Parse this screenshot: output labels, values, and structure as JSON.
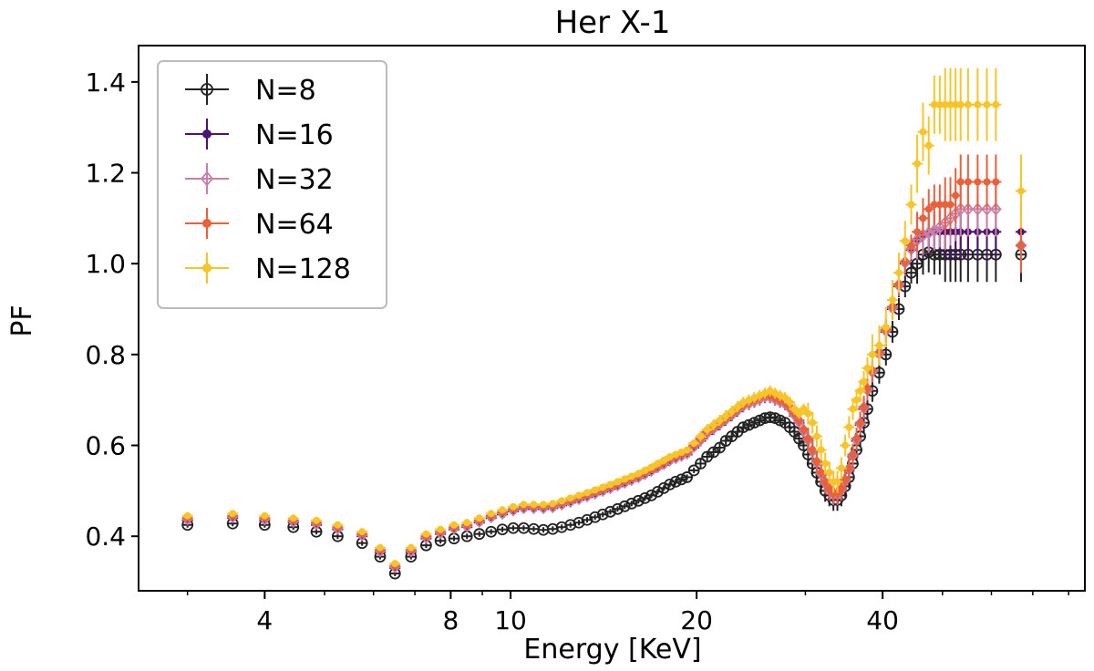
{
  "chart_data": {
    "type": "scatter",
    "title": "Her X-1",
    "xlabel": "Energy [KeV]",
    "ylabel": "PF",
    "x_scale": "log",
    "xlim": [
      2.5,
      85
    ],
    "ylim": [
      0.28,
      1.48
    ],
    "x_ticks": [
      4,
      8,
      10,
      20,
      40
    ],
    "y_ticks": [
      0.4,
      0.6,
      0.8,
      1.0,
      1.2,
      1.4
    ],
    "y_tick_labels": [
      "0.4",
      "0.6",
      "0.8",
      "1.0",
      "1.2",
      "1.4"
    ],
    "legend_position": "top-left",
    "x": [
      3.0,
      3.55,
      4.0,
      4.45,
      4.85,
      5.25,
      5.75,
      6.15,
      6.5,
      6.9,
      7.3,
      7.7,
      8.1,
      8.5,
      8.9,
      9.3,
      9.7,
      10.1,
      10.5,
      10.9,
      11.3,
      11.7,
      12.1,
      12.5,
      12.9,
      13.3,
      13.7,
      14.1,
      14.5,
      14.9,
      15.3,
      15.7,
      16.1,
      16.5,
      16.9,
      17.3,
      17.7,
      18.1,
      18.5,
      18.9,
      19.3,
      19.8,
      20.3,
      20.8,
      21.3,
      21.8,
      22.3,
      22.8,
      23.3,
      23.8,
      24.3,
      24.8,
      25.3,
      25.8,
      26.3,
      26.8,
      27.3,
      27.8,
      28.3,
      28.8,
      29.3,
      29.8,
      30.3,
      30.8,
      31.3,
      31.8,
      32.3,
      32.8,
      33.3,
      33.8,
      34.3,
      34.8,
      35.3,
      35.8,
      36.3,
      36.8,
      37.3,
      37.8,
      38.5,
      39.5,
      40.5,
      41.5,
      42.5,
      43.5,
      44.5,
      45.5,
      46.5,
      47.5,
      48.5,
      49.5,
      50.5,
      51.5,
      52.5,
      53.5,
      55.0,
      57.0,
      59.0,
      61.0,
      67.0
    ],
    "series": [
      {
        "name": "N=8",
        "color": "#222222",
        "marker": "open-circle",
        "values": [
          0.425,
          0.428,
          0.425,
          0.42,
          0.41,
          0.4,
          0.385,
          0.355,
          0.318,
          0.355,
          0.38,
          0.39,
          0.395,
          0.4,
          0.405,
          0.41,
          0.415,
          0.418,
          0.418,
          0.416,
          0.414,
          0.416,
          0.42,
          0.425,
          0.43,
          0.436,
          0.442,
          0.448,
          0.454,
          0.46,
          0.466,
          0.472,
          0.478,
          0.484,
          0.49,
          0.498,
          0.506,
          0.514,
          0.52,
          0.525,
          0.53,
          0.545,
          0.56,
          0.575,
          0.585,
          0.595,
          0.61,
          0.62,
          0.63,
          0.64,
          0.645,
          0.65,
          0.655,
          0.66,
          0.662,
          0.66,
          0.655,
          0.65,
          0.64,
          0.63,
          0.615,
          0.6,
          0.58,
          0.56,
          0.54,
          0.52,
          0.5,
          0.49,
          0.48,
          0.48,
          0.49,
          0.51,
          0.53,
          0.56,
          0.59,
          0.62,
          0.65,
          0.68,
          0.72,
          0.76,
          0.8,
          0.85,
          0.9,
          0.95,
          0.98,
          1.0,
          1.02,
          1.025,
          1.02,
          1.02,
          1.02,
          1.02,
          1.02,
          1.02,
          1.02,
          1.02,
          1.02,
          1.02,
          1.02
        ]
      },
      {
        "name": "N=16",
        "color": "#4b1470",
        "marker": "filled-dot",
        "values": [
          0.435,
          0.44,
          0.435,
          0.43,
          0.425,
          0.415,
          0.4,
          0.365,
          0.33,
          0.365,
          0.395,
          0.405,
          0.415,
          0.42,
          0.43,
          0.44,
          0.448,
          0.455,
          0.46,
          0.46,
          0.46,
          0.462,
          0.468,
          0.474,
          0.48,
          0.486,
          0.492,
          0.498,
          0.504,
          0.51,
          0.516,
          0.522,
          0.528,
          0.535,
          0.542,
          0.55,
          0.557,
          0.565,
          0.57,
          0.575,
          0.58,
          0.595,
          0.61,
          0.625,
          0.635,
          0.645,
          0.655,
          0.665,
          0.675,
          0.685,
          0.69,
          0.695,
          0.7,
          0.705,
          0.705,
          0.7,
          0.695,
          0.69,
          0.68,
          0.665,
          0.65,
          0.63,
          0.61,
          0.585,
          0.56,
          0.535,
          0.515,
          0.5,
          0.49,
          0.49,
          0.5,
          0.52,
          0.545,
          0.575,
          0.61,
          0.645,
          0.68,
          0.72,
          0.76,
          0.8,
          0.85,
          0.9,
          0.95,
          1.0,
          1.03,
          1.05,
          1.06,
          1.065,
          1.07,
          1.07,
          1.07,
          1.07,
          1.07,
          1.07,
          1.07,
          1.07,
          1.07,
          1.07,
          1.07
        ]
      },
      {
        "name": "N=32",
        "color": "#c97fa8",
        "marker": "open-diamond",
        "values": [
          0.438,
          0.443,
          0.438,
          0.433,
          0.428,
          0.418,
          0.403,
          0.368,
          0.333,
          0.368,
          0.398,
          0.408,
          0.418,
          0.423,
          0.433,
          0.443,
          0.451,
          0.458,
          0.463,
          0.463,
          0.463,
          0.465,
          0.471,
          0.477,
          0.483,
          0.489,
          0.495,
          0.501,
          0.507,
          0.513,
          0.519,
          0.525,
          0.531,
          0.538,
          0.545,
          0.553,
          0.56,
          0.568,
          0.573,
          0.578,
          0.583,
          0.598,
          0.613,
          0.628,
          0.638,
          0.648,
          0.658,
          0.668,
          0.678,
          0.688,
          0.693,
          0.698,
          0.703,
          0.708,
          0.708,
          0.703,
          0.698,
          0.693,
          0.683,
          0.668,
          0.653,
          0.633,
          0.613,
          0.588,
          0.563,
          0.538,
          0.518,
          0.503,
          0.493,
          0.493,
          0.503,
          0.523,
          0.548,
          0.578,
          0.613,
          0.648,
          0.683,
          0.723,
          0.763,
          0.803,
          0.853,
          0.903,
          0.953,
          1.003,
          1.033,
          1.053,
          1.063,
          1.068,
          1.073,
          1.08,
          1.09,
          1.1,
          1.11,
          1.12,
          1.12,
          1.12,
          1.12,
          1.12,
          1.04
        ]
      },
      {
        "name": "N=64",
        "color": "#e8613c",
        "marker": "filled-dot",
        "values": [
          0.44,
          0.445,
          0.44,
          0.435,
          0.43,
          0.42,
          0.405,
          0.37,
          0.335,
          0.37,
          0.4,
          0.41,
          0.42,
          0.425,
          0.435,
          0.445,
          0.453,
          0.46,
          0.465,
          0.465,
          0.465,
          0.467,
          0.473,
          0.479,
          0.485,
          0.491,
          0.497,
          0.503,
          0.509,
          0.515,
          0.521,
          0.527,
          0.533,
          0.54,
          0.547,
          0.555,
          0.562,
          0.57,
          0.575,
          0.58,
          0.585,
          0.6,
          0.615,
          0.63,
          0.64,
          0.65,
          0.66,
          0.67,
          0.68,
          0.69,
          0.695,
          0.7,
          0.705,
          0.71,
          0.71,
          0.705,
          0.7,
          0.695,
          0.685,
          0.67,
          0.655,
          0.635,
          0.615,
          0.59,
          0.565,
          0.54,
          0.52,
          0.505,
          0.495,
          0.495,
          0.505,
          0.525,
          0.55,
          0.58,
          0.615,
          0.65,
          0.685,
          0.725,
          0.765,
          0.805,
          0.855,
          0.905,
          0.955,
          1.005,
          1.04,
          1.07,
          1.1,
          1.12,
          1.13,
          1.13,
          1.13,
          1.13,
          1.15,
          1.18,
          1.18,
          1.18,
          1.18,
          1.18,
          1.04
        ]
      },
      {
        "name": "N=128",
        "color": "#f7c52a",
        "marker": "filled-dot",
        "values": [
          0.445,
          0.45,
          0.445,
          0.44,
          0.435,
          0.425,
          0.41,
          0.375,
          0.34,
          0.375,
          0.405,
          0.415,
          0.425,
          0.43,
          0.44,
          0.45,
          0.458,
          0.465,
          0.47,
          0.47,
          0.47,
          0.472,
          0.478,
          0.484,
          0.49,
          0.496,
          0.502,
          0.508,
          0.514,
          0.52,
          0.526,
          0.532,
          0.538,
          0.545,
          0.552,
          0.56,
          0.567,
          0.575,
          0.58,
          0.585,
          0.59,
          0.605,
          0.62,
          0.635,
          0.645,
          0.655,
          0.665,
          0.675,
          0.685,
          0.695,
          0.7,
          0.705,
          0.71,
          0.715,
          0.72,
          0.715,
          0.71,
          0.705,
          0.695,
          0.68,
          0.67,
          0.68,
          0.67,
          0.65,
          0.62,
          0.59,
          0.56,
          0.54,
          0.52,
          0.52,
          0.55,
          0.6,
          0.64,
          0.68,
          0.7,
          0.72,
          0.74,
          0.77,
          0.8,
          0.82,
          0.86,
          0.92,
          0.98,
          1.05,
          1.13,
          1.22,
          1.29,
          1.26,
          1.35,
          1.35,
          1.35,
          1.35,
          1.35,
          1.35,
          1.35,
          1.35,
          1.35,
          1.35,
          1.16
        ]
      }
    ]
  }
}
